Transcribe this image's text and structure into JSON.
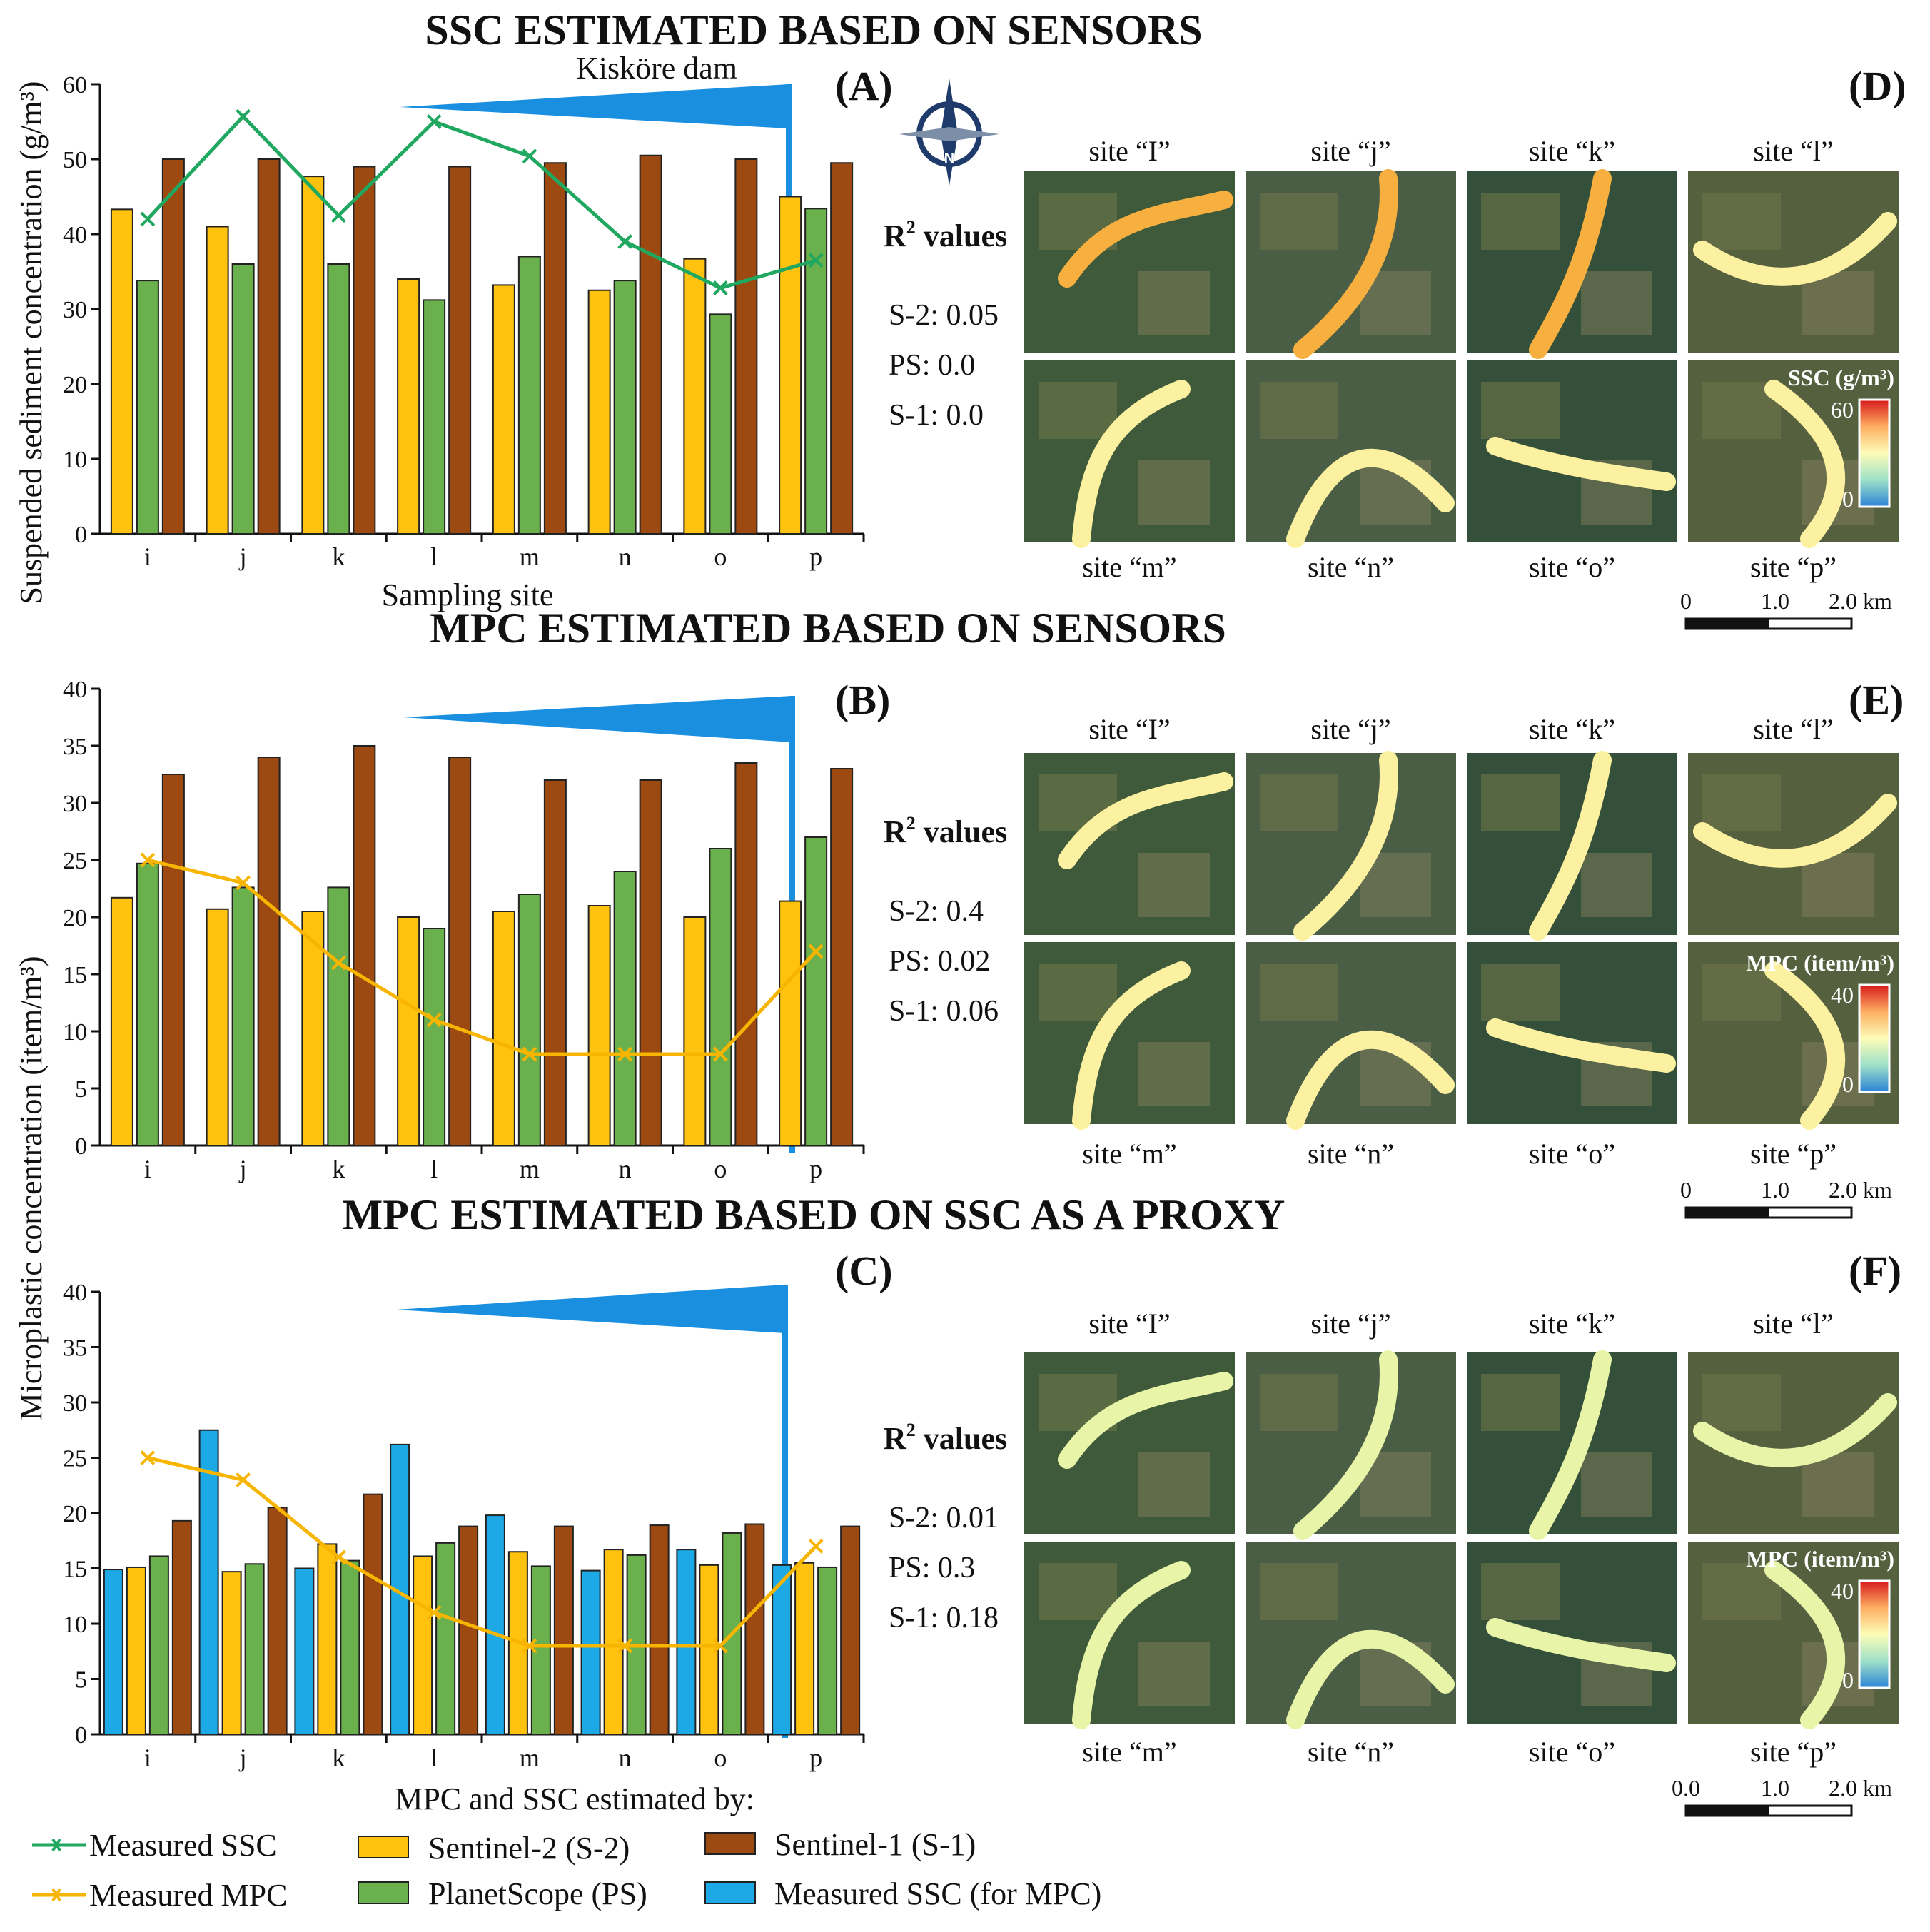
{
  "headers": {
    "top": "SSC ESTIMATED BASED ON SENSORS",
    "middle": "MPC ESTIMATED BASED ON SENSORS",
    "bottom": "MPC ESTIMATED BASED ON SSC AS A PROXY"
  },
  "panel_labels": {
    "a": "(A)",
    "b": "(B)",
    "c": "(C)",
    "d": "(D)",
    "e": "(E)",
    "f": "(F)"
  },
  "dam_label": "Kisköre dam",
  "axes": {
    "ylabel_a": "Suspended sediment concentration (g/m³)",
    "ylabel_bc": "Microplastic concentration (item/m³)",
    "xlabel_a": "Sampling site",
    "xlabel_c": "MPC and SSC estimated by:"
  },
  "chart_data": [
    {
      "id": "A",
      "type": "bar",
      "categories": [
        "i",
        "j",
        "k",
        "l",
        "m",
        "n",
        "o",
        "p"
      ],
      "ylim": [
        0,
        60
      ],
      "yticks": [
        0,
        10,
        20,
        30,
        40,
        50,
        60
      ],
      "series": [
        {
          "name": "Sentinel-2 (S-2)",
          "values": [
            43.3,
            41,
            47.7,
            34,
            33.2,
            32.5,
            36.7,
            45
          ]
        },
        {
          "name": "PlanetScope (PS)",
          "values": [
            33.8,
            36,
            36,
            31.2,
            37,
            33.8,
            29.3,
            43.4
          ]
        },
        {
          "name": "Sentinel-1 (S-1)",
          "values": [
            50,
            50,
            49,
            49,
            49.5,
            50.5,
            50,
            49.5
          ]
        }
      ],
      "line": {
        "name": "Measured SSC",
        "values": [
          42,
          55.7,
          42.5,
          55,
          50.4,
          39,
          32.8,
          36.5
        ]
      }
    },
    {
      "id": "B",
      "type": "bar",
      "categories": [
        "i",
        "j",
        "k",
        "l",
        "m",
        "n",
        "o",
        "p"
      ],
      "ylim": [
        0,
        40
      ],
      "yticks": [
        0,
        5,
        10,
        15,
        20,
        25,
        30,
        35,
        40
      ],
      "series": [
        {
          "name": "Sentinel-2 (S-2)",
          "values": [
            21.7,
            20.7,
            20.5,
            20,
            20.5,
            21,
            20,
            21.4
          ]
        },
        {
          "name": "PlanetScope (PS)",
          "values": [
            24.7,
            22.6,
            22.6,
            19,
            22,
            24,
            26,
            27
          ]
        },
        {
          "name": "Sentinel-1 (S-1)",
          "values": [
            32.5,
            34,
            35,
            34,
            32,
            32,
            33.5,
            33
          ]
        }
      ],
      "line": {
        "name": "Measured MPC",
        "values": [
          25,
          23,
          16,
          11,
          8,
          8,
          8,
          17
        ]
      }
    },
    {
      "id": "C",
      "type": "bar",
      "categories": [
        "i",
        "j",
        "k",
        "l",
        "m",
        "n",
        "o",
        "p"
      ],
      "ylim": [
        0,
        40
      ],
      "yticks": [
        0,
        5,
        10,
        15,
        20,
        25,
        30,
        35,
        40
      ],
      "series": [
        {
          "name": "Measured SSC (for MPC)",
          "values": [
            14.9,
            27.5,
            15,
            26.2,
            19.8,
            14.8,
            16.7,
            15.3
          ]
        },
        {
          "name": "Sentinel-2 (S-2)",
          "values": [
            15.1,
            14.7,
            17.2,
            16.1,
            16.5,
            16.7,
            15.3,
            15.5
          ]
        },
        {
          "name": "PlanetScope (PS)",
          "values": [
            16.1,
            15.4,
            15.7,
            17.3,
            15.2,
            16.2,
            18.2,
            15.1
          ]
        },
        {
          "name": "Sentinel-1 (S-1)",
          "values": [
            19.3,
            20.5,
            21.7,
            18.8,
            18.8,
            18.9,
            19,
            18.8
          ]
        }
      ],
      "line": {
        "name": "Measured MPC",
        "values": [
          25,
          23,
          16,
          11,
          8,
          8,
          8,
          17
        ]
      }
    }
  ],
  "maps": {
    "sites_top": [
      "site “I”",
      "site “j”",
      "site “k”",
      "site “l”"
    ],
    "sites_bottom": [
      "site “m”",
      "site “n”",
      "site “o”",
      "site “p”"
    ],
    "r2_title": "values",
    "d": {
      "r2": [
        "S-2: 0.05",
        "PS: 0.0",
        "S-1: 0.0"
      ],
      "cb_title": "SSC (g/m³)",
      "cb_max": "60",
      "cb_min": "0",
      "scale": [
        "0",
        "1.0",
        "2.0 km"
      ]
    },
    "e": {
      "r2": [
        "S-2: 0.4",
        "PS: 0.02",
        "S-1: 0.06"
      ],
      "cb_title": "MPC (item/m³)",
      "cb_max": "40",
      "cb_min": "0",
      "scale": [
        "0",
        "1.0",
        "2.0 km"
      ]
    },
    "f": {
      "r2": [
        "S-2: 0.01",
        "PS: 0.3",
        "S-1: 0.18"
      ],
      "cb_title": "MPC (item/m³)",
      "cb_max": "40",
      "cb_min": "0",
      "scale": [
        "0.0",
        "1.0",
        "2.0 km"
      ]
    }
  },
  "legend": {
    "measured_ssc": "Measured SSC",
    "measured_mpc": "Measured MPC",
    "s2": "Sentinel-2 (S-2)",
    "ps": "PlanetScope (PS)",
    "s1": "Sentinel-1 (S-1)",
    "measured_ssc_mpc": "Measured SSC (for MPC)"
  },
  "colors": {
    "s2": "#ffc20e",
    "ps": "#6ab04c",
    "s1": "#9c4a12",
    "measured_ssc_bar": "#1ca9e6",
    "ssc_line": "#20a860",
    "mpc_line": "#f7b500",
    "dam": "#1a8fe0"
  }
}
